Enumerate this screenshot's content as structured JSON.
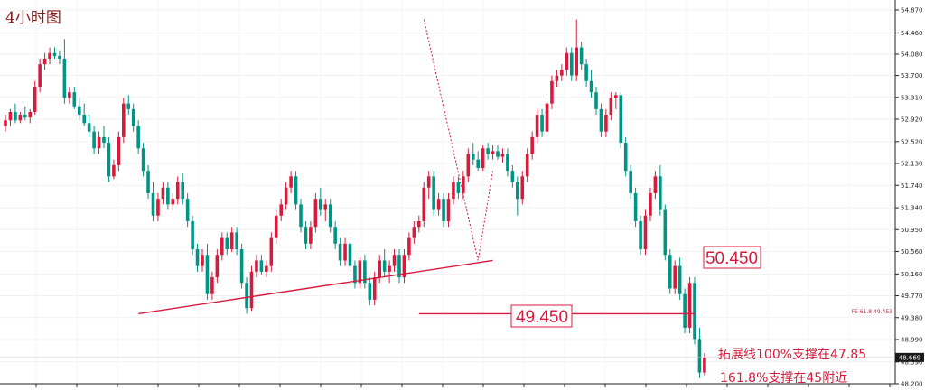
{
  "chart_data": {
    "type": "candlestick",
    "title": "4小时图",
    "ylim": [
      48.2,
      54.95
    ],
    "y_ticks": [
      "54.870",
      "54.460",
      "54.080",
      "53.700",
      "53.310",
      "52.920",
      "52.520",
      "52.130",
      "51.740",
      "51.340",
      "50.950",
      "50.560",
      "50.160",
      "49.770",
      "49.380",
      "48.990",
      "48.590",
      "48.200"
    ],
    "current_price": "48.669",
    "colors": {
      "bull": "#d81b3c",
      "bear": "#009485",
      "line": "#d81b3c"
    },
    "candles": [
      {
        "o": 52.8,
        "h": 53.0,
        "l": 52.7,
        "c": 52.9
      },
      {
        "o": 52.9,
        "h": 53.1,
        "l": 52.8,
        "c": 53.05
      },
      {
        "o": 53.05,
        "h": 53.2,
        "l": 52.85,
        "c": 52.9
      },
      {
        "o": 52.9,
        "h": 53.05,
        "l": 52.85,
        "c": 53.0
      },
      {
        "o": 53.0,
        "h": 53.15,
        "l": 52.9,
        "c": 52.95
      },
      {
        "o": 52.95,
        "h": 53.1,
        "l": 52.85,
        "c": 53.05
      },
      {
        "o": 53.05,
        "h": 53.6,
        "l": 53.0,
        "c": 53.5
      },
      {
        "o": 53.5,
        "h": 54.0,
        "l": 53.4,
        "c": 53.9
      },
      {
        "o": 53.9,
        "h": 54.1,
        "l": 53.8,
        "c": 54.0
      },
      {
        "o": 54.0,
        "h": 54.2,
        "l": 53.9,
        "c": 54.1
      },
      {
        "o": 54.1,
        "h": 54.2,
        "l": 54.0,
        "c": 54.05
      },
      {
        "o": 54.05,
        "h": 54.15,
        "l": 53.9,
        "c": 54.0
      },
      {
        "o": 54.0,
        "h": 54.35,
        "l": 53.2,
        "c": 53.3
      },
      {
        "o": 53.3,
        "h": 53.5,
        "l": 53.2,
        "c": 53.4
      },
      {
        "o": 53.4,
        "h": 53.5,
        "l": 53.1,
        "c": 53.15
      },
      {
        "o": 53.15,
        "h": 53.3,
        "l": 52.9,
        "c": 53.0
      },
      {
        "o": 53.0,
        "h": 53.2,
        "l": 52.8,
        "c": 52.85
      },
      {
        "o": 52.85,
        "h": 53.0,
        "l": 52.6,
        "c": 52.7
      },
      {
        "o": 52.7,
        "h": 52.8,
        "l": 52.3,
        "c": 52.4
      },
      {
        "o": 52.4,
        "h": 52.7,
        "l": 52.3,
        "c": 52.6
      },
      {
        "o": 52.6,
        "h": 52.8,
        "l": 52.4,
        "c": 52.5
      },
      {
        "o": 52.5,
        "h": 52.6,
        "l": 51.8,
        "c": 51.9
      },
      {
        "o": 51.9,
        "h": 52.2,
        "l": 51.85,
        "c": 52.1
      },
      {
        "o": 52.1,
        "h": 52.7,
        "l": 52.0,
        "c": 52.6
      },
      {
        "o": 52.6,
        "h": 53.3,
        "l": 52.5,
        "c": 53.2
      },
      {
        "o": 53.2,
        "h": 53.35,
        "l": 53.0,
        "c": 53.1
      },
      {
        "o": 53.1,
        "h": 53.2,
        "l": 52.7,
        "c": 52.8
      },
      {
        "o": 52.8,
        "h": 52.9,
        "l": 52.3,
        "c": 52.4
      },
      {
        "o": 52.4,
        "h": 52.5,
        "l": 51.9,
        "c": 52.0
      },
      {
        "o": 52.0,
        "h": 52.1,
        "l": 51.5,
        "c": 51.6
      },
      {
        "o": 51.6,
        "h": 51.8,
        "l": 51.1,
        "c": 51.2
      },
      {
        "o": 51.2,
        "h": 51.6,
        "l": 51.1,
        "c": 51.5
      },
      {
        "o": 51.5,
        "h": 51.8,
        "l": 51.4,
        "c": 51.7
      },
      {
        "o": 51.7,
        "h": 51.8,
        "l": 51.3,
        "c": 51.4
      },
      {
        "o": 51.4,
        "h": 51.6,
        "l": 51.3,
        "c": 51.5
      },
      {
        "o": 51.5,
        "h": 51.9,
        "l": 51.4,
        "c": 51.8
      },
      {
        "o": 51.8,
        "h": 51.95,
        "l": 51.4,
        "c": 51.5
      },
      {
        "o": 51.5,
        "h": 51.6,
        "l": 51.0,
        "c": 51.1
      },
      {
        "o": 51.1,
        "h": 51.2,
        "l": 50.5,
        "c": 50.6
      },
      {
        "o": 50.6,
        "h": 50.7,
        "l": 50.2,
        "c": 50.3
      },
      {
        "o": 50.3,
        "h": 50.6,
        "l": 50.2,
        "c": 50.5
      },
      {
        "o": 50.5,
        "h": 50.7,
        "l": 49.7,
        "c": 49.8
      },
      {
        "o": 49.8,
        "h": 50.2,
        "l": 49.7,
        "c": 50.1
      },
      {
        "o": 50.1,
        "h": 50.6,
        "l": 50.0,
        "c": 50.5
      },
      {
        "o": 50.5,
        "h": 50.9,
        "l": 50.4,
        "c": 50.8
      },
      {
        "o": 50.8,
        "h": 50.9,
        "l": 50.5,
        "c": 50.6
      },
      {
        "o": 50.6,
        "h": 51.0,
        "l": 50.55,
        "c": 50.9
      },
      {
        "o": 50.9,
        "h": 51.0,
        "l": 50.5,
        "c": 50.6
      },
      {
        "o": 50.6,
        "h": 50.7,
        "l": 49.9,
        "c": 50.0
      },
      {
        "o": 50.0,
        "h": 50.1,
        "l": 49.45,
        "c": 49.55
      },
      {
        "o": 49.55,
        "h": 50.3,
        "l": 49.5,
        "c": 50.2
      },
      {
        "o": 50.2,
        "h": 50.5,
        "l": 50.1,
        "c": 50.4
      },
      {
        "o": 50.4,
        "h": 50.5,
        "l": 50.15,
        "c": 50.2
      },
      {
        "o": 50.2,
        "h": 50.4,
        "l": 50.1,
        "c": 50.3
      },
      {
        "o": 50.3,
        "h": 50.9,
        "l": 50.2,
        "c": 50.8
      },
      {
        "o": 50.8,
        "h": 51.3,
        "l": 50.7,
        "c": 51.2
      },
      {
        "o": 51.2,
        "h": 51.5,
        "l": 51.1,
        "c": 51.4
      },
      {
        "o": 51.4,
        "h": 51.8,
        "l": 51.3,
        "c": 51.7
      },
      {
        "o": 51.7,
        "h": 52.0,
        "l": 51.6,
        "c": 51.9
      },
      {
        "o": 51.9,
        "h": 52.0,
        "l": 51.3,
        "c": 51.4
      },
      {
        "o": 51.4,
        "h": 51.5,
        "l": 50.9,
        "c": 51.0
      },
      {
        "o": 51.0,
        "h": 51.1,
        "l": 50.6,
        "c": 50.7
      },
      {
        "o": 50.7,
        "h": 51.1,
        "l": 50.6,
        "c": 51.0
      },
      {
        "o": 51.0,
        "h": 51.6,
        "l": 50.9,
        "c": 51.5
      },
      {
        "o": 51.5,
        "h": 51.7,
        "l": 51.2,
        "c": 51.3
      },
      {
        "o": 51.3,
        "h": 51.5,
        "l": 51.1,
        "c": 51.4
      },
      {
        "o": 51.4,
        "h": 51.5,
        "l": 50.9,
        "c": 51.0
      },
      {
        "o": 51.0,
        "h": 51.1,
        "l": 50.6,
        "c": 50.7
      },
      {
        "o": 50.7,
        "h": 50.8,
        "l": 50.3,
        "c": 50.4
      },
      {
        "o": 50.4,
        "h": 50.8,
        "l": 50.3,
        "c": 50.7
      },
      {
        "o": 50.7,
        "h": 50.8,
        "l": 50.2,
        "c": 50.3
      },
      {
        "o": 50.3,
        "h": 50.4,
        "l": 49.9,
        "c": 50.0
      },
      {
        "o": 50.0,
        "h": 50.45,
        "l": 49.9,
        "c": 50.4
      },
      {
        "o": 50.4,
        "h": 50.5,
        "l": 49.9,
        "c": 50.0
      },
      {
        "o": 50.0,
        "h": 50.1,
        "l": 49.6,
        "c": 49.7
      },
      {
        "o": 49.7,
        "h": 50.2,
        "l": 49.6,
        "c": 50.1
      },
      {
        "o": 50.1,
        "h": 50.5,
        "l": 50.0,
        "c": 50.4
      },
      {
        "o": 50.4,
        "h": 50.6,
        "l": 50.1,
        "c": 50.2
      },
      {
        "o": 50.2,
        "h": 50.4,
        "l": 50.0,
        "c": 50.3
      },
      {
        "o": 50.3,
        "h": 50.6,
        "l": 50.2,
        "c": 50.5
      },
      {
        "o": 50.5,
        "h": 50.6,
        "l": 50.0,
        "c": 50.1
      },
      {
        "o": 50.1,
        "h": 50.6,
        "l": 50.0,
        "c": 50.5
      },
      {
        "o": 50.5,
        "h": 50.9,
        "l": 50.4,
        "c": 50.8
      },
      {
        "o": 50.8,
        "h": 51.1,
        "l": 50.7,
        "c": 51.0
      },
      {
        "o": 51.0,
        "h": 51.2,
        "l": 50.9,
        "c": 51.1
      },
      {
        "o": 51.1,
        "h": 51.8,
        "l": 51.0,
        "c": 51.7
      },
      {
        "o": 51.7,
        "h": 52.0,
        "l": 51.5,
        "c": 51.9
      },
      {
        "o": 51.9,
        "h": 52.0,
        "l": 51.2,
        "c": 51.3
      },
      {
        "o": 51.3,
        "h": 51.6,
        "l": 51.2,
        "c": 51.5
      },
      {
        "o": 51.5,
        "h": 51.6,
        "l": 51.0,
        "c": 51.1
      },
      {
        "o": 51.1,
        "h": 51.6,
        "l": 51.0,
        "c": 51.5
      },
      {
        "o": 51.5,
        "h": 51.9,
        "l": 51.4,
        "c": 51.8
      },
      {
        "o": 51.8,
        "h": 51.9,
        "l": 51.5,
        "c": 51.6
      },
      {
        "o": 51.6,
        "h": 52.0,
        "l": 51.5,
        "c": 51.9
      },
      {
        "o": 51.9,
        "h": 52.4,
        "l": 51.8,
        "c": 52.3
      },
      {
        "o": 52.3,
        "h": 52.5,
        "l": 52.1,
        "c": 52.2
      },
      {
        "o": 52.2,
        "h": 52.35,
        "l": 52.0,
        "c": 52.05
      },
      {
        "o": 52.05,
        "h": 52.45,
        "l": 52.0,
        "c": 52.4
      },
      {
        "o": 52.4,
        "h": 52.5,
        "l": 52.2,
        "c": 52.3
      },
      {
        "o": 52.3,
        "h": 52.45,
        "l": 52.2,
        "c": 52.35
      },
      {
        "o": 52.35,
        "h": 52.45,
        "l": 52.2,
        "c": 52.25
      },
      {
        "o": 52.25,
        "h": 52.4,
        "l": 52.15,
        "c": 52.3
      },
      {
        "o": 52.3,
        "h": 52.4,
        "l": 51.9,
        "c": 52.0
      },
      {
        "o": 52.0,
        "h": 52.1,
        "l": 51.7,
        "c": 51.8
      },
      {
        "o": 51.8,
        "h": 51.9,
        "l": 51.2,
        "c": 51.5
      },
      {
        "o": 51.5,
        "h": 52.0,
        "l": 51.4,
        "c": 51.9
      },
      {
        "o": 51.9,
        "h": 52.4,
        "l": 51.8,
        "c": 52.3
      },
      {
        "o": 52.3,
        "h": 52.7,
        "l": 52.2,
        "c": 52.6
      },
      {
        "o": 52.6,
        "h": 53.1,
        "l": 52.5,
        "c": 53.0
      },
      {
        "o": 53.0,
        "h": 53.1,
        "l": 52.6,
        "c": 52.7
      },
      {
        "o": 52.7,
        "h": 53.3,
        "l": 52.6,
        "c": 53.2
      },
      {
        "o": 53.2,
        "h": 53.7,
        "l": 53.1,
        "c": 53.6
      },
      {
        "o": 53.6,
        "h": 53.8,
        "l": 53.5,
        "c": 53.7
      },
      {
        "o": 53.7,
        "h": 53.9,
        "l": 53.6,
        "c": 53.8
      },
      {
        "o": 53.8,
        "h": 54.2,
        "l": 53.7,
        "c": 54.1
      },
      {
        "o": 54.1,
        "h": 54.2,
        "l": 53.6,
        "c": 53.7
      },
      {
        "o": 53.7,
        "h": 54.7,
        "l": 53.6,
        "c": 54.2
      },
      {
        "o": 54.2,
        "h": 54.3,
        "l": 53.8,
        "c": 53.9
      },
      {
        "o": 53.9,
        "h": 54.0,
        "l": 53.5,
        "c": 53.6
      },
      {
        "o": 53.6,
        "h": 53.8,
        "l": 53.3,
        "c": 53.4
      },
      {
        "o": 53.4,
        "h": 53.5,
        "l": 53.0,
        "c": 53.1
      },
      {
        "o": 53.1,
        "h": 53.2,
        "l": 52.6,
        "c": 52.7
      },
      {
        "o": 52.7,
        "h": 53.1,
        "l": 52.6,
        "c": 53.0
      },
      {
        "o": 53.0,
        "h": 53.4,
        "l": 52.9,
        "c": 53.3
      },
      {
        "o": 53.3,
        "h": 53.4,
        "l": 53.1,
        "c": 53.35
      },
      {
        "o": 53.35,
        "h": 53.4,
        "l": 52.4,
        "c": 52.5
      },
      {
        "o": 52.5,
        "h": 52.6,
        "l": 51.9,
        "c": 52.0
      },
      {
        "o": 52.0,
        "h": 52.1,
        "l": 51.5,
        "c": 51.6
      },
      {
        "o": 51.6,
        "h": 51.7,
        "l": 51.0,
        "c": 51.1
      },
      {
        "o": 51.1,
        "h": 51.2,
        "l": 50.5,
        "c": 50.6
      },
      {
        "o": 50.6,
        "h": 51.3,
        "l": 50.5,
        "c": 51.2
      },
      {
        "o": 51.2,
        "h": 51.7,
        "l": 51.1,
        "c": 51.6
      },
      {
        "o": 51.6,
        "h": 52.0,
        "l": 51.5,
        "c": 51.9
      },
      {
        "o": 51.9,
        "h": 52.1,
        "l": 51.2,
        "c": 51.3
      },
      {
        "o": 51.3,
        "h": 51.4,
        "l": 50.4,
        "c": 50.5
      },
      {
        "o": 50.5,
        "h": 50.6,
        "l": 49.8,
        "c": 49.9
      },
      {
        "o": 49.9,
        "h": 50.4,
        "l": 49.8,
        "c": 50.3
      },
      {
        "o": 50.3,
        "h": 50.45,
        "l": 49.7,
        "c": 49.8
      },
      {
        "o": 49.8,
        "h": 49.9,
        "l": 49.1,
        "c": 49.2
      },
      {
        "o": 49.2,
        "h": 50.1,
        "l": 49.1,
        "c": 50.0
      },
      {
        "o": 50.0,
        "h": 50.1,
        "l": 48.9,
        "c": 49.0
      },
      {
        "o": 49.0,
        "h": 49.2,
        "l": 48.3,
        "c": 48.4
      },
      {
        "o": 48.4,
        "h": 48.75,
        "l": 48.35,
        "c": 48.67
      }
    ],
    "trend_lines": [
      {
        "name": "support-trendline",
        "points": [
          [
            27,
            49.45
          ],
          [
            99,
            50.4
          ]
        ]
      },
      {
        "name": "fe-618-line",
        "points": [
          [
            84,
            49.45
          ],
          [
            140,
            49.45
          ]
        ]
      }
    ],
    "zigzag": [
      [
        85,
        54.7
      ],
      [
        96,
        50.4
      ],
      [
        99,
        52.0
      ]
    ],
    "labels": [
      {
        "name": "level-50450",
        "text": "50.450",
        "value": 50.45
      },
      {
        "name": "level-49450",
        "text": "49.450",
        "value": 49.45
      }
    ],
    "fe_label": "FE 61.8  49.453",
    "annotations": [
      "拓展线100%支撑在47.85",
      "161.8%支撑在45附近"
    ]
  }
}
